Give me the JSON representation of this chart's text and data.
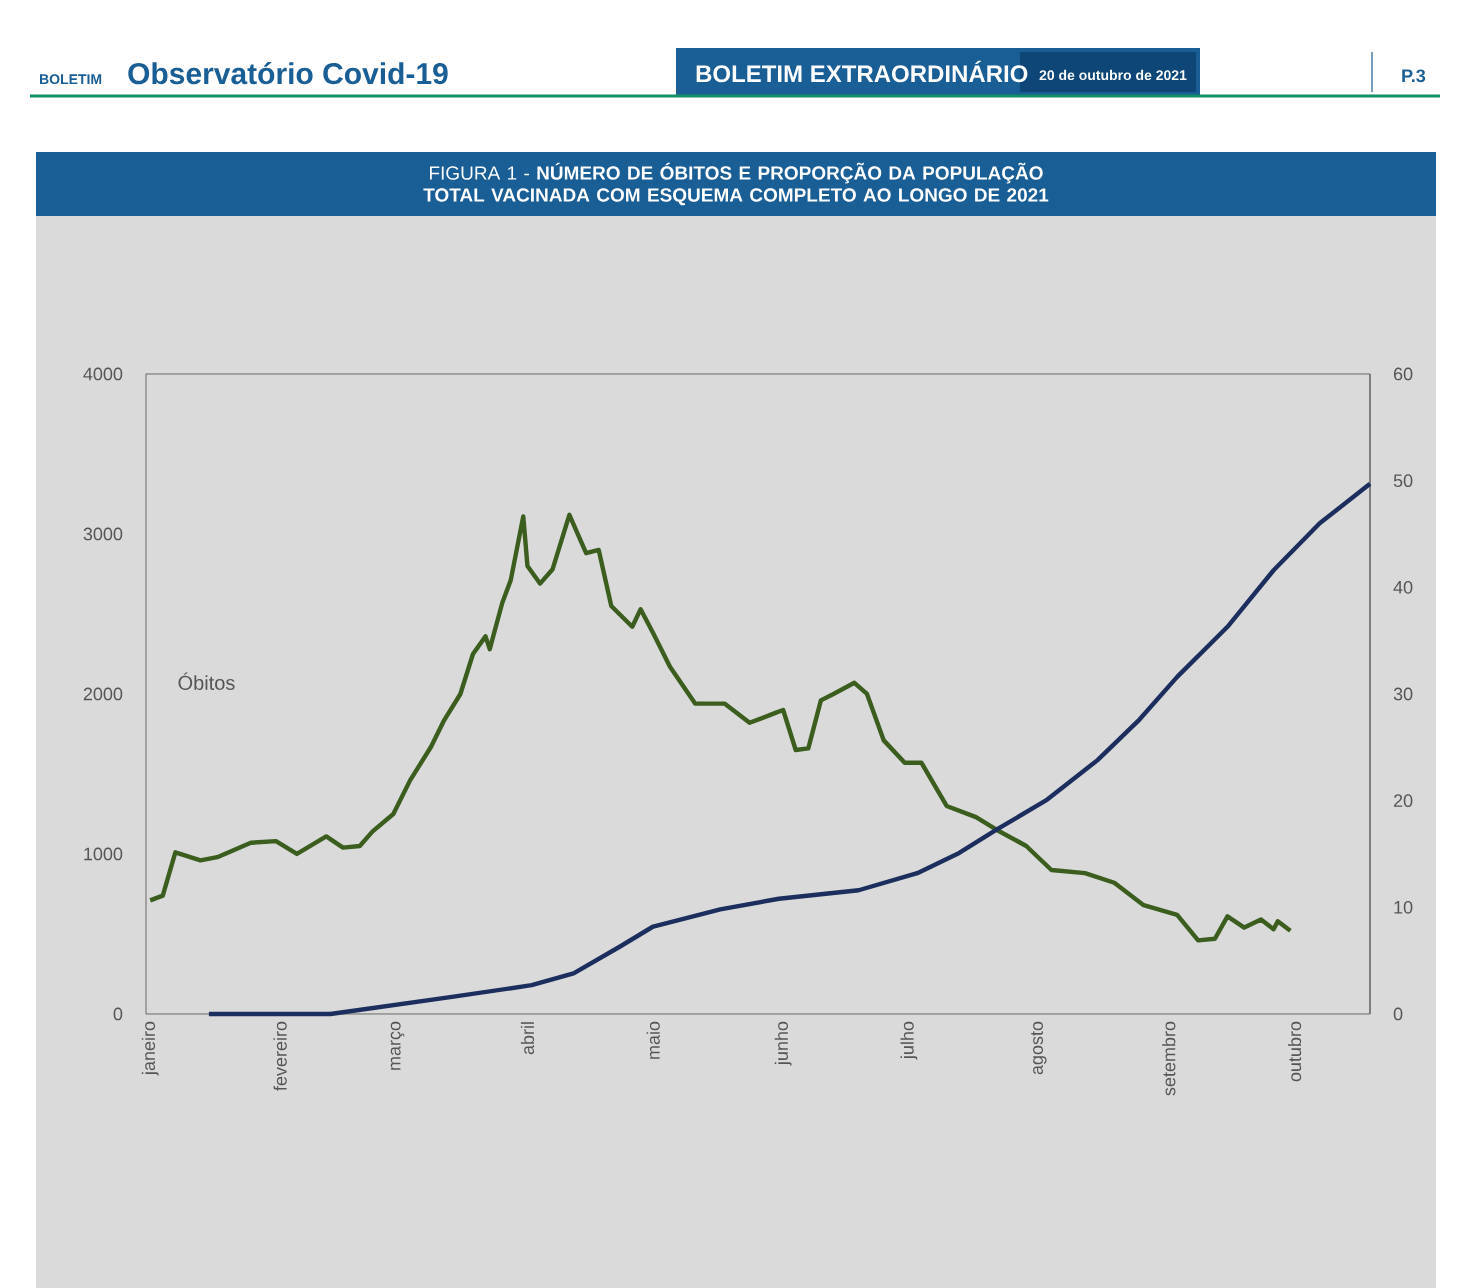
{
  "chart_data": {
    "type": "line",
    "title": "FIGURA 1 - **NÚMERO DE ÓBITOS E PROPORÇÃO DA POPULAÇÃO TOTAL VACINADA COM ESQUEMA COMPLETO AO LONGO DE 2021**",
    "annotations": [
      "BOLETIM",
      "Observatório Covid-19",
      "BOLETIM EXTRAORDINÁRIO",
      "20 de outubro de 2021",
      "P.3"
    ],
    "xlim": [
      "2020-12-31",
      "2021-10-19"
    ],
    "xticks": [
      {
        "value": "2021-01-01",
        "label": "janeiro"
      },
      {
        "value": "2021-02-01",
        "label": "fevereiro"
      },
      {
        "value": "2021-03-01",
        "label": "março"
      },
      {
        "value": "2021-04-01",
        "label": "abril"
      },
      {
        "value": "2021-05-01",
        "label": "maio"
      },
      {
        "value": "2021-06-01",
        "label": "junho"
      },
      {
        "value": "2021-07-01",
        "label": "julho"
      },
      {
        "value": "2021-08-01",
        "label": "agosto"
      },
      {
        "value": "2021-09-01",
        "label": "setembro"
      },
      {
        "value": "2021-10-01",
        "label": "outubro"
      }
    ],
    "ylim": [
      0,
      4000
    ],
    "yticks": [
      0,
      1000,
      2000,
      3000,
      4000
    ],
    "y2lim": [
      0,
      60
    ],
    "y2ticks": [
      0,
      10,
      20,
      30,
      40,
      50,
      60
    ],
    "series": [
      {
        "name": "Óbitos",
        "color": "#3b5e1f",
        "x": [
          "2021-01-01",
          "2021-01-04",
          "2021-01-07",
          "2021-01-13",
          "2021-01-17",
          "2021-01-25",
          "2021-01-31",
          "2021-02-05",
          "2021-02-12",
          "2021-02-16",
          "2021-02-20",
          "2021-02-23",
          "2021-02-28",
          "2021-03-04",
          "2021-03-09",
          "2021-03-12",
          "2021-03-16",
          "2021-03-19",
          "2021-03-22",
          "2021-03-23",
          "2021-03-26",
          "2021-03-28",
          "2021-03-31",
          "2021-04-01",
          "2021-04-04",
          "2021-04-07",
          "2021-04-11",
          "2021-04-15",
          "2021-04-18",
          "2021-04-21",
          "2021-04-26",
          "2021-04-28",
          "2021-05-01",
          "2021-05-05",
          "2021-05-11",
          "2021-05-18",
          "2021-05-24",
          "2021-05-30",
          "2021-06-01",
          "2021-06-04",
          "2021-06-07",
          "2021-06-10",
          "2021-06-13",
          "2021-06-18",
          "2021-06-21",
          "2021-06-25",
          "2021-06-30",
          "2021-07-04",
          "2021-07-10",
          "2021-07-17",
          "2021-07-22",
          "2021-07-29",
          "2021-08-04",
          "2021-08-12",
          "2021-08-19",
          "2021-08-26",
          "2021-09-03",
          "2021-09-08",
          "2021-09-12",
          "2021-09-15",
          "2021-09-19",
          "2021-09-23",
          "2021-09-26",
          "2021-09-27",
          "2021-09-30"
        ],
        "values": [
          710,
          740,
          1010,
          960,
          980,
          1070,
          1080,
          1000,
          1110,
          1040,
          1050,
          1140,
          1250,
          1460,
          1670,
          1830,
          2000,
          2250,
          2360,
          2280,
          2570,
          2710,
          3110,
          2800,
          2690,
          2780,
          3120,
          2880,
          2900,
          2550,
          2420,
          2530,
          2380,
          2170,
          1940,
          1940,
          1820,
          1880,
          1900,
          1650,
          1660,
          1960,
          2000,
          2070,
          2000,
          1710,
          1570,
          1570,
          1300,
          1230,
          1150,
          1050,
          900,
          880,
          820,
          680,
          620,
          460,
          470,
          610,
          540,
          590,
          530,
          580,
          520
        ]
      },
      {
        "color": "#1c2e5e",
        "axis": "y2",
        "x": [
          "2021-01-15",
          "2021-02-13",
          "2021-03-14",
          "2021-04-02",
          "2021-04-12",
          "2021-04-23",
          "2021-05-01",
          "2021-05-17",
          "2021-05-31",
          "2021-06-19",
          "2021-07-03",
          "2021-07-13",
          "2021-07-22",
          "2021-08-03",
          "2021-08-15",
          "2021-08-25",
          "2021-09-03",
          "2021-09-15",
          "2021-09-26",
          "2021-10-07",
          "2021-10-19"
        ],
        "values": [
          0,
          0,
          1.6,
          2.7,
          3.8,
          6.3,
          8.2,
          9.8,
          10.8,
          11.6,
          13.2,
          15.1,
          17.3,
          20.1,
          23.8,
          27.6,
          31.6,
          36.3,
          41.6,
          46.0,
          49.7
        ]
      }
    ]
  }
}
